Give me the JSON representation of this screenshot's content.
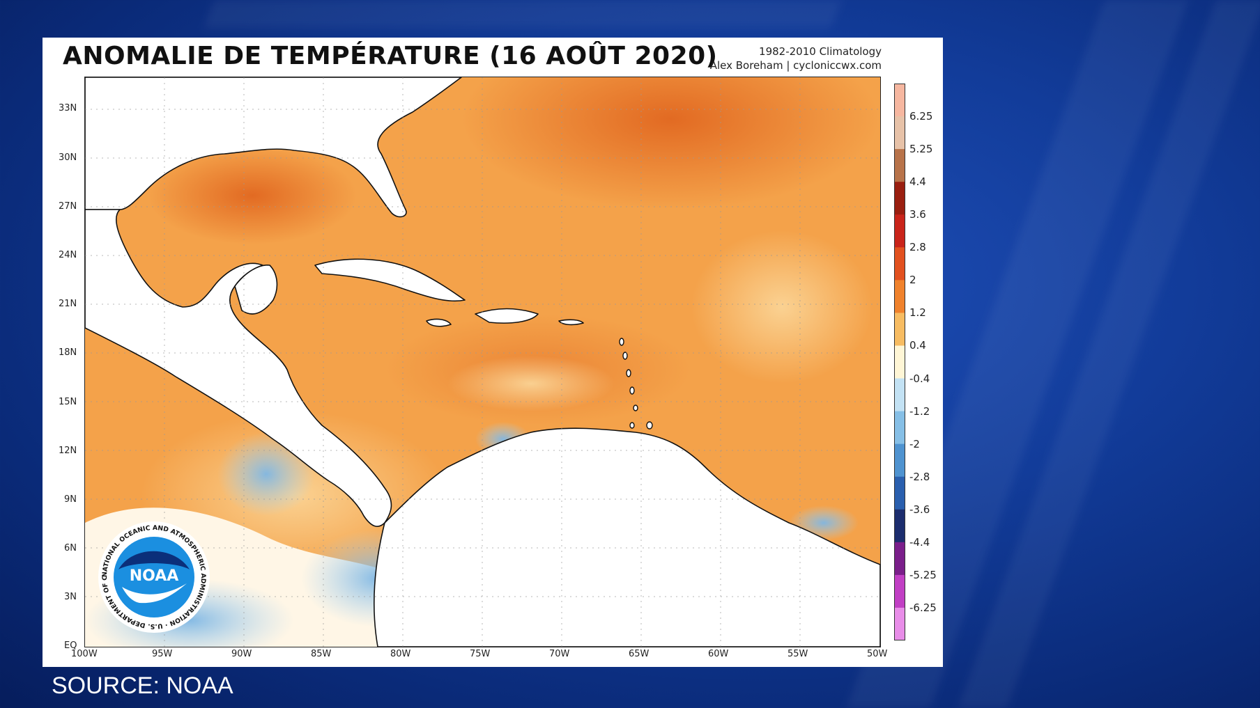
{
  "title": "ANOMALIE DE TEMPÉRATURE (16 AOÛT 2020)",
  "credits": {
    "line1": "1982-2010 Climatology",
    "line2": "Alex Boreham | cycloniccwx.com"
  },
  "map": {
    "lat_labels": [
      "33N",
      "30N",
      "27N",
      "24N",
      "21N",
      "18N",
      "15N",
      "12N",
      "9N",
      "6N",
      "3N",
      "EQ"
    ],
    "lon_labels": [
      "100W",
      "95W",
      "90W",
      "85W",
      "80W",
      "75W",
      "70W",
      "65W",
      "60W",
      "55W",
      "50W"
    ],
    "extent": {
      "lon_min": -100,
      "lon_max": -50,
      "lat_min": 0,
      "lat_max": 35
    },
    "ocean_anomaly_color": "#f4a24a",
    "warm_core_color": "#e0641e",
    "cool_patch_color": "#9fcfee",
    "land_color": "#ffffff"
  },
  "colorbar": {
    "labels": [
      "6.25",
      "5.25",
      "4.4",
      "3.6",
      "2.8",
      "2",
      "1.2",
      "0.4",
      "-0.4",
      "-1.2",
      "-2",
      "-2.8",
      "-3.6",
      "-4.4",
      "-5.25",
      "-6.25"
    ],
    "colors": [
      "#f6b7a0",
      "#e7c2a8",
      "#b8734a",
      "#9a1f10",
      "#c9241a",
      "#e2511f",
      "#f0822c",
      "#f7bc62",
      "#fff6d6",
      "#c3e2f4",
      "#86bfe6",
      "#4f93d0",
      "#2a5fae",
      "#1c2d6e",
      "#7a1e8a",
      "#c13fc4",
      "#e88de8"
    ]
  },
  "logo": {
    "text": "NOAA",
    "ring_text": "NATIONAL OCEANIC AND ATMOSPHERIC ADMINISTRATION · U.S. DEPARTMENT OF COMMERCE ·"
  },
  "source": "SOURCE: NOAA"
}
